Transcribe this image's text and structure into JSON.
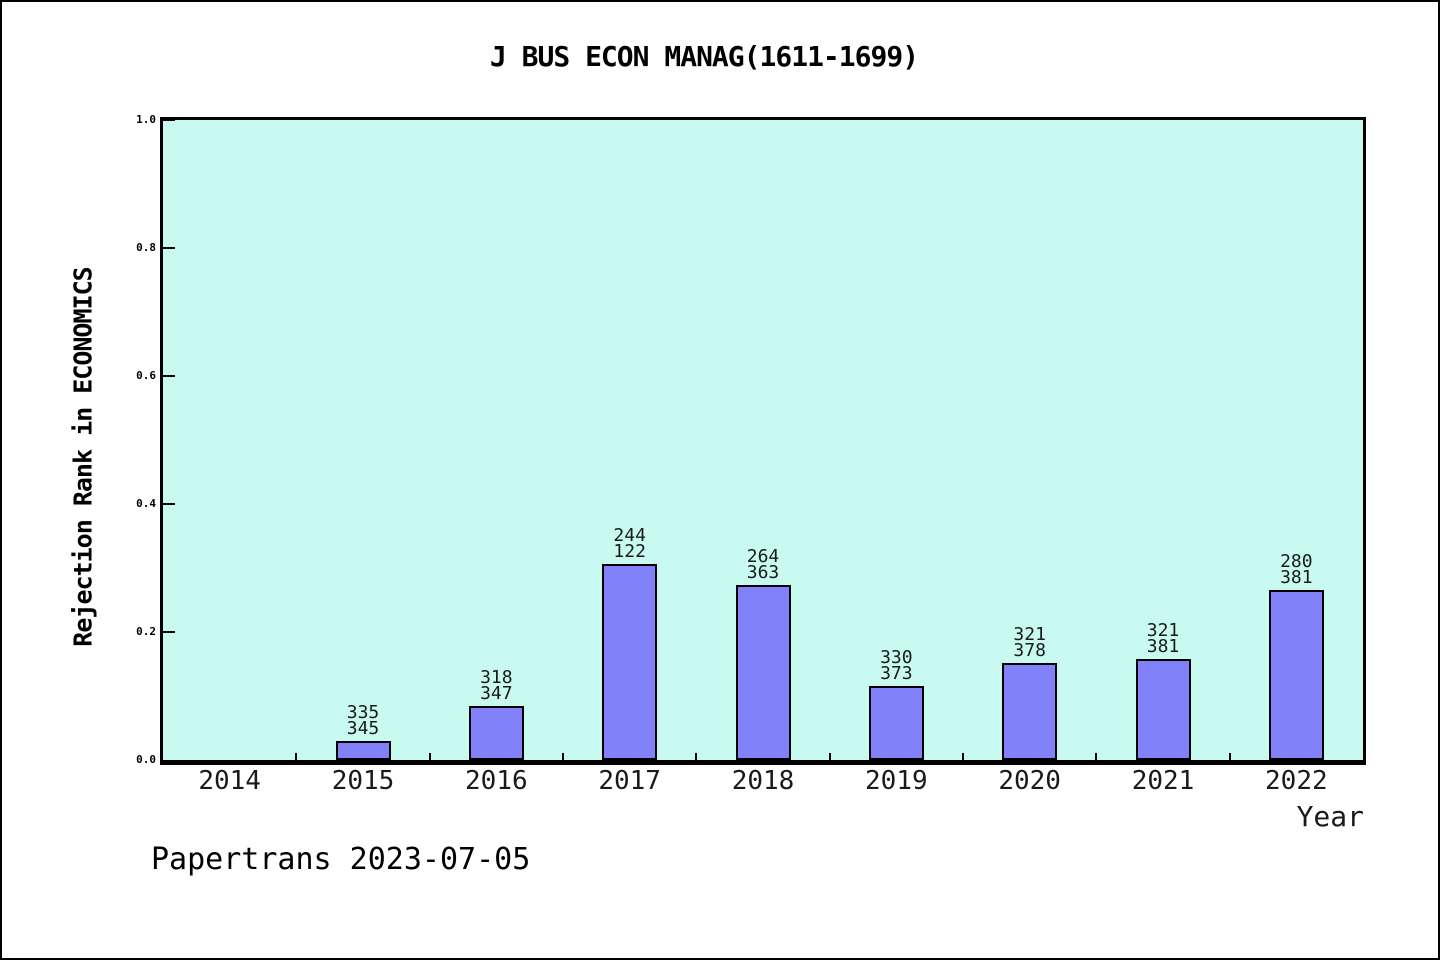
{
  "page": {
    "footer": "Papertrans 2023-07-05"
  },
  "chart_data": {
    "type": "bar",
    "title": "J BUS ECON MANAG(1611-1699)",
    "xlabel": "Year",
    "ylabel": "Rejection Rank in ECONOMICS",
    "ylim": [
      0.0,
      1.0
    ],
    "yticks": [
      "0.0",
      "0.2",
      "0.4",
      "0.6",
      "0.8",
      "1.0"
    ],
    "grid": false,
    "legend": false,
    "plot_bg_color": "#c8faef",
    "bar_color": "#8181fa",
    "bar_edge_color": "#000000",
    "categories": [
      "2014",
      "2015",
      "2016",
      "2017",
      "2018",
      "2019",
      "2020",
      "2021",
      "2022"
    ],
    "values": [
      null,
      0.029,
      0.084,
      0.307,
      0.273,
      0.115,
      0.151,
      0.158,
      0.265
    ],
    "bar_labels": [
      null,
      [
        "335",
        "345"
      ],
      [
        "318",
        "347"
      ],
      [
        "244",
        "122"
      ],
      [
        "264",
        "363"
      ],
      [
        "330",
        "373"
      ],
      [
        "321",
        "378"
      ],
      [
        "321",
        "381"
      ],
      [
        "280",
        "381"
      ]
    ]
  }
}
